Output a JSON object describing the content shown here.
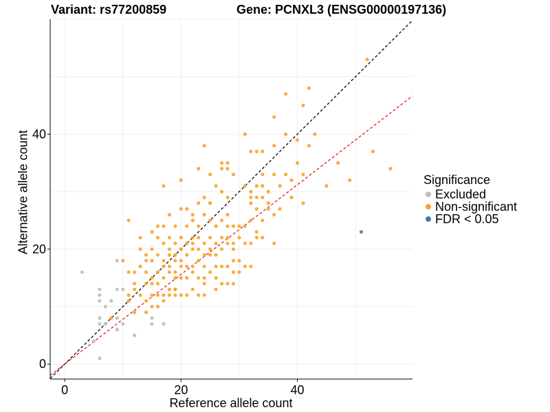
{
  "titles": {
    "variant": "Variant: rs77200859",
    "gene": "Gene: PCNXL3 (ENSG00000197136)"
  },
  "legend": {
    "title": "Significance",
    "items": [
      {
        "label": "Excluded",
        "color": "#bebebe"
      },
      {
        "label": "Non-significant",
        "color": "#f7a42b"
      },
      {
        "label": "FDR < 0.05",
        "color": "#4a7aaa"
      }
    ]
  },
  "chart_data": {
    "type": "scatter",
    "xlabel": "Reference allele count",
    "ylabel": "Alternative allele count",
    "xlim": [
      -2.5,
      59.8
    ],
    "ylim": [
      -2.6,
      60.0
    ],
    "xticks": [
      0,
      20,
      40
    ],
    "yticks": [
      0,
      20,
      40
    ],
    "grid": true,
    "legend_position": "right",
    "reference_lines": [
      {
        "style": "dashed",
        "color": "#000000",
        "slope": 1.0,
        "intercept": 0
      },
      {
        "style": "dashed",
        "color": "#e41a1c",
        "slope": 0.78,
        "intercept": 0
      }
    ],
    "series": [
      {
        "name": "Excluded",
        "color": "#bebebe",
        "points": [
          [
            3,
            16
          ],
          [
            6,
            13
          ],
          [
            6,
            12
          ],
          [
            6,
            11
          ],
          [
            6,
            8
          ],
          [
            6,
            7
          ],
          [
            6,
            1
          ],
          [
            5,
            4
          ],
          [
            7,
            10
          ],
          [
            7,
            7
          ],
          [
            8,
            11
          ],
          [
            9,
            18
          ],
          [
            9,
            13
          ],
          [
            9,
            8
          ],
          [
            9,
            6
          ],
          [
            10,
            7
          ],
          [
            10,
            13
          ],
          [
            12,
            5
          ],
          [
            15,
            8
          ],
          [
            15,
            7
          ],
          [
            17,
            7
          ]
        ]
      },
      {
        "name": "Non-significant",
        "color": "#f7a42b",
        "points": [
          [
            8,
            8
          ],
          [
            10,
            18
          ],
          [
            11,
            25
          ],
          [
            11,
            16
          ],
          [
            11,
            12
          ],
          [
            11,
            11
          ],
          [
            12,
            14
          ],
          [
            12,
            13
          ],
          [
            12,
            9
          ],
          [
            13,
            22
          ],
          [
            13,
            20
          ],
          [
            13,
            17
          ],
          [
            13,
            12
          ],
          [
            14,
            19
          ],
          [
            14,
            18
          ],
          [
            14,
            16
          ],
          [
            14,
            14
          ],
          [
            14,
            11
          ],
          [
            14,
            9
          ],
          [
            15,
            23
          ],
          [
            15,
            20
          ],
          [
            15,
            18
          ],
          [
            15,
            15
          ],
          [
            15,
            14
          ],
          [
            15,
            12
          ],
          [
            15,
            10
          ],
          [
            16,
            24
          ],
          [
            16,
            22
          ],
          [
            16,
            19
          ],
          [
            16,
            16
          ],
          [
            16,
            14
          ],
          [
            16,
            12
          ],
          [
            16,
            10
          ],
          [
            17,
            31
          ],
          [
            17,
            24
          ],
          [
            17,
            21
          ],
          [
            17,
            18
          ],
          [
            17,
            17
          ],
          [
            17,
            15
          ],
          [
            17,
            12
          ],
          [
            17,
            11
          ],
          [
            18,
            26
          ],
          [
            18,
            22
          ],
          [
            18,
            19
          ],
          [
            18,
            17
          ],
          [
            18,
            16
          ],
          [
            18,
            13
          ],
          [
            18,
            12
          ],
          [
            19,
            24
          ],
          [
            19,
            21
          ],
          [
            19,
            19
          ],
          [
            19,
            18
          ],
          [
            19,
            16
          ],
          [
            19,
            15
          ],
          [
            19,
            13
          ],
          [
            19,
            12
          ],
          [
            20,
            32
          ],
          [
            20,
            27
          ],
          [
            20,
            22
          ],
          [
            20,
            20
          ],
          [
            20,
            18
          ],
          [
            20,
            17
          ],
          [
            20,
            15
          ],
          [
            20,
            12
          ],
          [
            21,
            24
          ],
          [
            21,
            21
          ],
          [
            21,
            19
          ],
          [
            21,
            17
          ],
          [
            21,
            15
          ],
          [
            21,
            12
          ],
          [
            22,
            26
          ],
          [
            22,
            25
          ],
          [
            22,
            22
          ],
          [
            22,
            21
          ],
          [
            22,
            20
          ],
          [
            22,
            17
          ],
          [
            22,
            16
          ],
          [
            22,
            13
          ],
          [
            23,
            34
          ],
          [
            23,
            28
          ],
          [
            23,
            24
          ],
          [
            23,
            22
          ],
          [
            23,
            20
          ],
          [
            23,
            18
          ],
          [
            23,
            15
          ],
          [
            23,
            12
          ],
          [
            24,
            38
          ],
          [
            24,
            29
          ],
          [
            24,
            26
          ],
          [
            24,
            21
          ],
          [
            24,
            19
          ],
          [
            24,
            17
          ],
          [
            24,
            15
          ],
          [
            24,
            14
          ],
          [
            24,
            12
          ],
          [
            25,
            33
          ],
          [
            25,
            28
          ],
          [
            25,
            25
          ],
          [
            25,
            22
          ],
          [
            25,
            20
          ],
          [
            25,
            19
          ],
          [
            25,
            16
          ],
          [
            26,
            31
          ],
          [
            26,
            24
          ],
          [
            26,
            21
          ],
          [
            26,
            19
          ],
          [
            26,
            17
          ],
          [
            26,
            15
          ],
          [
            27,
            35
          ],
          [
            27,
            34
          ],
          [
            27,
            30
          ],
          [
            27,
            25
          ],
          [
            27,
            22
          ],
          [
            27,
            20
          ],
          [
            27,
            17
          ],
          [
            27,
            14
          ],
          [
            28,
            35
          ],
          [
            28,
            34
          ],
          [
            28,
            29
          ],
          [
            28,
            26
          ],
          [
            28,
            24
          ],
          [
            28,
            22
          ],
          [
            28,
            21
          ],
          [
            28,
            17
          ],
          [
            28,
            14
          ],
          [
            29,
            33
          ],
          [
            29,
            24
          ],
          [
            29,
            20
          ],
          [
            29,
            18
          ],
          [
            29,
            16
          ],
          [
            29,
            14
          ],
          [
            30,
            24
          ],
          [
            30,
            18
          ],
          [
            30,
            16
          ],
          [
            31,
            40
          ],
          [
            31,
            24
          ],
          [
            31,
            21
          ],
          [
            31,
            17
          ],
          [
            32,
            37
          ],
          [
            32,
            30
          ],
          [
            32,
            29
          ],
          [
            32,
            28
          ],
          [
            32,
            25
          ],
          [
            32,
            21
          ],
          [
            32,
            17
          ],
          [
            33,
            37
          ],
          [
            33,
            31
          ],
          [
            33,
            29
          ],
          [
            33,
            27
          ],
          [
            33,
            23
          ],
          [
            33,
            22
          ],
          [
            34,
            37
          ],
          [
            34,
            33
          ],
          [
            34,
            29
          ],
          [
            34,
            25
          ],
          [
            34,
            22
          ],
          [
            35,
            30
          ],
          [
            35,
            28
          ],
          [
            35,
            27
          ],
          [
            36,
            43
          ],
          [
            36,
            38
          ],
          [
            36,
            33
          ],
          [
            36,
            26
          ],
          [
            36,
            21
          ],
          [
            37,
            27
          ],
          [
            37,
            31
          ],
          [
            38,
            47
          ],
          [
            38,
            40
          ],
          [
            38,
            33
          ],
          [
            39,
            32
          ],
          [
            39,
            29
          ],
          [
            40,
            39
          ],
          [
            40,
            35
          ],
          [
            41,
            45
          ],
          [
            41,
            28
          ],
          [
            41,
            33
          ],
          [
            42,
            48
          ],
          [
            42,
            38
          ],
          [
            43,
            40
          ],
          [
            45,
            31
          ],
          [
            47,
            35
          ],
          [
            49,
            32
          ],
          [
            52,
            53
          ],
          [
            53,
            37
          ],
          [
            56,
            34
          ],
          [
            12,
            16
          ],
          [
            18,
            20
          ],
          [
            25,
            28
          ],
          [
            26,
            13
          ],
          [
            29,
            21
          ],
          [
            30,
            22
          ],
          [
            31,
            31
          ],
          [
            34,
            31
          ],
          [
            21,
            27
          ],
          [
            20,
            20
          ],
          [
            19,
            13
          ]
        ]
      },
      {
        "name": "FDR < 0.05",
        "color": "#4a7aaa",
        "points": [
          [
            51,
            23
          ]
        ]
      }
    ]
  }
}
